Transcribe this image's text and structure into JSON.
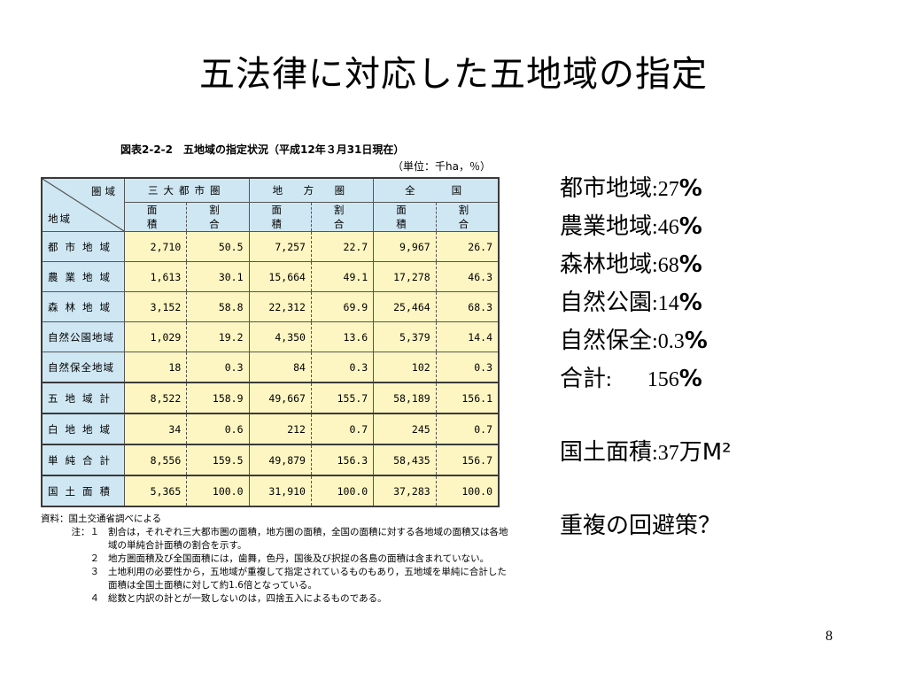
{
  "slide": {
    "title": "五法律に対応した五地域の指定",
    "page_number": "8"
  },
  "figure": {
    "caption": "図表2-2-2　五地域の指定状況（平成12年３月31日現在）",
    "unit": "（単位：千ha，％）",
    "corner_top": "圏域",
    "corner_bottom": "地域",
    "groups": [
      "三大都市圏",
      "地　方　圏",
      "全　　国"
    ],
    "subheaders": [
      "面　積",
      "割　合",
      "面　積",
      "割　合",
      "面　積",
      "割　合"
    ],
    "rows": [
      {
        "label": "都市地域",
        "values": [
          "2,710",
          "50.5",
          "7,257",
          "22.7",
          "9,967",
          "26.7"
        ]
      },
      {
        "label": "農業地域",
        "values": [
          "1,613",
          "30.1",
          "15,664",
          "49.1",
          "17,278",
          "46.3"
        ]
      },
      {
        "label": "森林地域",
        "values": [
          "3,152",
          "58.8",
          "22,312",
          "69.9",
          "25,464",
          "68.3"
        ]
      },
      {
        "label": "自然公園地域",
        "values": [
          "1,029",
          "19.2",
          "4,350",
          "13.6",
          "5,379",
          "14.4"
        ]
      },
      {
        "label": "自然保全地域",
        "values": [
          "18",
          "0.3",
          "84",
          "0.3",
          "102",
          "0.3"
        ]
      },
      {
        "label": "五地域計",
        "values": [
          "8,522",
          "158.9",
          "49,667",
          "155.7",
          "58,189",
          "156.1"
        ]
      },
      {
        "label": "白地地域",
        "values": [
          "34",
          "0.6",
          "212",
          "0.7",
          "245",
          "0.7"
        ]
      },
      {
        "label": "単純合計",
        "values": [
          "8,556",
          "159.5",
          "49,879",
          "156.3",
          "58,435",
          "156.7"
        ]
      },
      {
        "label": "国土面積",
        "values": [
          "5,365",
          "100.0",
          "31,910",
          "100.0",
          "37,283",
          "100.0"
        ]
      }
    ],
    "source": "資料：国土交通省調べによる",
    "notes": [
      {
        "label": "注：１",
        "text": "割合は，それぞれ三大都市圏の面積，地方圏の面積，全国の面積に対する各地域の面積又は各地域の単純合計面積の割合を示す。"
      },
      {
        "label": "２",
        "text": "地方圏面積及び全国面積には，歯舞，色丹，国後及び択捉の各島の面積は含まれていない。"
      },
      {
        "label": "３",
        "text": "土地利用の必要性から，五地域が重複して指定されているものもあり，五地域を単純に合計した面積は全国土面積に対して約1.6倍となっている。"
      },
      {
        "label": "４",
        "text": "総数と内訳の計とが一致しないのは，四捨五入によるものである。"
      }
    ]
  },
  "summary": {
    "items": [
      {
        "label": "都市地域",
        "sep": ":",
        "value": "27",
        "unit": "%"
      },
      {
        "label": "農業地域",
        "sep": ":",
        "value": "46",
        "unit": "%"
      },
      {
        "label": "森林地域",
        "sep": ":",
        "value": "68",
        "unit": "%"
      },
      {
        "label": "自然公園",
        "sep": ":",
        "value": "14",
        "unit": "%"
      },
      {
        "label": "自然保全",
        "sep": ":",
        "value": "0.3",
        "unit": "%"
      },
      {
        "label": "合計",
        "sep": ":",
        "value": "156",
        "unit": "%"
      }
    ],
    "land_area": {
      "label": "国土面積",
      "sep": ":",
      "value": "37",
      "unit": "万M²"
    },
    "question": "重複の回避策？"
  }
}
